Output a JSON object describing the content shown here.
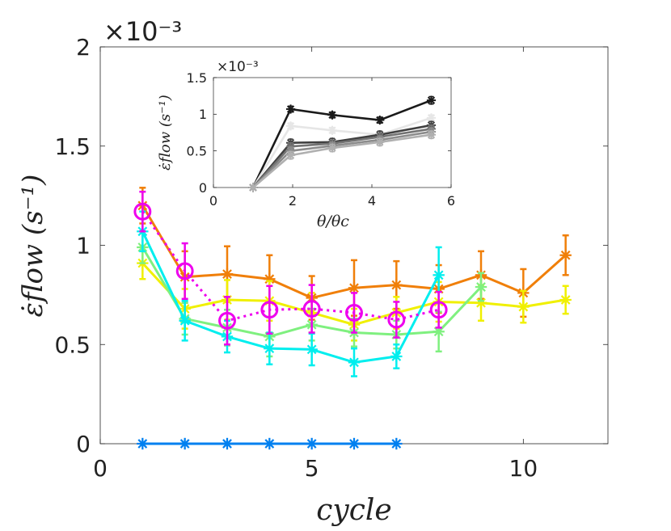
{
  "chart_data": [
    {
      "name": "main",
      "type": "line",
      "xlabel": "cycle",
      "ylabel": "ε̇flow (s⁻¹)",
      "exponent_label": "×10⁻³",
      "xlim": [
        0,
        12
      ],
      "ylim": [
        0,
        2
      ],
      "xticks": [
        0,
        5,
        10
      ],
      "yticks": [
        0,
        0.5,
        1,
        1.5,
        2
      ],
      "ytick_labels": [
        "0",
        "0.5",
        "1",
        "1.5",
        "2"
      ],
      "series": [
        {
          "name": "orange",
          "color": "#f07f09",
          "marker": "star",
          "dash": "",
          "x": [
            1,
            2,
            3,
            4,
            5,
            6,
            7,
            8,
            9,
            10,
            11
          ],
          "y": [
            1.2,
            0.84,
            0.855,
            0.83,
            0.735,
            0.785,
            0.8,
            0.78,
            0.85,
            0.76,
            0.95
          ],
          "err": [
            0.09,
            0.13,
            0.14,
            0.12,
            0.11,
            0.14,
            0.12,
            0.12,
            0.12,
            0.12,
            0.1
          ]
        },
        {
          "name": "yellow",
          "color": "#f0f000",
          "marker": "star",
          "dash": "",
          "x": [
            1,
            2,
            3,
            4,
            5,
            6,
            7,
            8,
            9,
            10,
            11
          ],
          "y": [
            0.91,
            0.68,
            0.725,
            0.72,
            0.66,
            0.6,
            0.66,
            0.715,
            0.71,
            0.69,
            0.725
          ],
          "err": [
            0.08,
            0.1,
            0.1,
            0.1,
            0.1,
            0.08,
            0.08,
            0.1,
            0.09,
            0.08,
            0.07
          ]
        },
        {
          "name": "green",
          "color": "#7ff07f",
          "marker": "star",
          "dash": "",
          "x": [
            1,
            2,
            3,
            4,
            5,
            6,
            7,
            8,
            9
          ],
          "y": [
            0.99,
            0.63,
            0.585,
            0.54,
            0.6,
            0.56,
            0.55,
            0.565,
            0.79
          ],
          "err": [
            0.08,
            0.08,
            0.09,
            0.1,
            0.08,
            0.07,
            0.07,
            0.1,
            0.07
          ]
        },
        {
          "name": "cyan",
          "color": "#00eeee",
          "marker": "star",
          "dash": "",
          "x": [
            1,
            2,
            3,
            4,
            5,
            6,
            7,
            8
          ],
          "y": [
            1.07,
            0.62,
            0.54,
            0.48,
            0.475,
            0.41,
            0.44,
            0.85
          ],
          "err": [
            0.1,
            0.1,
            0.08,
            0.08,
            0.08,
            0.07,
            0.06,
            0.14
          ]
        },
        {
          "name": "magenta-mean",
          "color": "#ee00ee",
          "marker": "circle",
          "dash": "3,5",
          "x": [
            1,
            2,
            3,
            4,
            5,
            6,
            7,
            8
          ],
          "y": [
            1.17,
            0.87,
            0.62,
            0.675,
            0.68,
            0.66,
            0.625,
            0.675
          ],
          "err": [
            0.1,
            0.14,
            0.12,
            0.12,
            0.12,
            0.1,
            0.09,
            0.09
          ]
        },
        {
          "name": "blue-zero",
          "color": "#0080f0",
          "marker": "star",
          "dash": "",
          "x": [
            1,
            2,
            3,
            4,
            5,
            6,
            7
          ],
          "y": [
            0,
            0,
            0,
            0,
            0,
            0,
            0
          ],
          "err": [
            0,
            0,
            0,
            0,
            0,
            0,
            0
          ]
        }
      ]
    },
    {
      "name": "inset",
      "type": "line",
      "xlabel": "θ/θc",
      "ylabel": "ε̇flow (s⁻¹)",
      "exponent_label": "×10⁻³",
      "xlim": [
        0,
        6
      ],
      "ylim": [
        0,
        1.5
      ],
      "xticks": [
        0,
        2,
        4,
        6
      ],
      "yticks": [
        0,
        0.5,
        1,
        1.5
      ],
      "ytick_labels": [
        "0",
        "0.5",
        "1",
        "1.5"
      ],
      "series": [
        {
          "name": "black",
          "color": "#1a1a1a",
          "marker": "star",
          "x": [
            1,
            1.95,
            3,
            4.2,
            5.5
          ],
          "y": [
            0,
            1.07,
            0.99,
            0.92,
            1.19
          ],
          "err": [
            0,
            0.04,
            0.04,
            0.04,
            0.05
          ]
        },
        {
          "name": "light-1",
          "color": "#e6e6e6",
          "marker": "star",
          "x": [
            1,
            1.95,
            3,
            4.2,
            5.5
          ],
          "y": [
            0,
            0.84,
            0.78,
            0.72,
            0.95
          ],
          "err": [
            0,
            0.04,
            0.04,
            0.04,
            0.04
          ]
        },
        {
          "name": "dark-gray",
          "color": "#404040",
          "marker": "star",
          "x": [
            1,
            1.95,
            3,
            4.2,
            5.5
          ],
          "y": [
            0,
            0.61,
            0.62,
            0.72,
            0.85
          ],
          "err": [
            0,
            0.05,
            0.05,
            0.05,
            0.05
          ]
        },
        {
          "name": "mid-gray",
          "color": "#737373",
          "marker": "star",
          "x": [
            1,
            1.95,
            3,
            4.2,
            5.5
          ],
          "y": [
            0,
            0.56,
            0.6,
            0.69,
            0.8
          ],
          "err": [
            0,
            0.05,
            0.05,
            0.05,
            0.05
          ]
        },
        {
          "name": "gray",
          "color": "#8c8c8c",
          "marker": "star",
          "x": [
            1,
            1.95,
            3,
            4.2,
            5.5
          ],
          "y": [
            0,
            0.5,
            0.57,
            0.65,
            0.76
          ],
          "err": [
            0,
            0.05,
            0.05,
            0.05,
            0.05
          ]
        },
        {
          "name": "light-2",
          "color": "#b0b0b0",
          "marker": "star",
          "x": [
            1,
            1.95,
            3,
            4.2,
            5.5
          ],
          "y": [
            0,
            0.44,
            0.54,
            0.62,
            0.72
          ],
          "err": [
            0,
            0.05,
            0.05,
            0.05,
            0.05
          ]
        }
      ]
    }
  ]
}
